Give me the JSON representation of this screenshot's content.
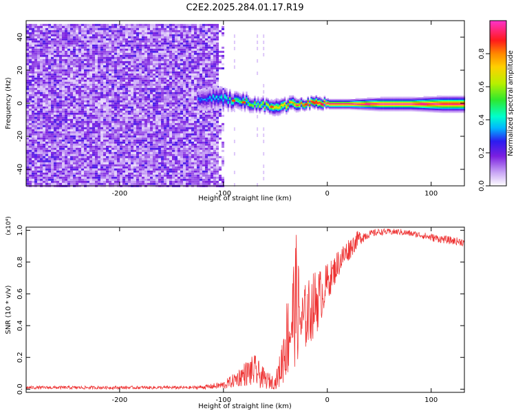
{
  "title": "C2E2.2025.284.01.17.R19",
  "chart_data": [
    {
      "type": "heatmap",
      "xlabel": "Height of straight line (km)",
      "ylabel": "Frequency (Hz)",
      "xlim": [
        -290,
        132
      ],
      "ylim": [
        -50,
        50
      ],
      "xticks": [
        -200,
        -100,
        0,
        100
      ],
      "yticks": [
        -40,
        -20,
        0,
        20,
        40
      ],
      "colorbar": {
        "label": "Normalized spectral amplitude",
        "range": [
          0,
          1
        ],
        "ticks": [
          "0.0",
          "0.2",
          "0.4",
          "0.6",
          "0.8"
        ]
      },
      "noise_region": {
        "x": [
          -290,
          -107
        ],
        "y": [
          -50,
          48
        ]
      },
      "ridge": [
        {
          "x": -125,
          "freq": 2,
          "width": 6
        },
        {
          "x": -110,
          "freq": 4,
          "width": 7
        },
        {
          "x": -100,
          "freq": 3,
          "width": 6
        },
        {
          "x": -90,
          "freq": 2,
          "width": 5
        },
        {
          "x": -80,
          "freq": 1,
          "width": 5
        },
        {
          "x": -70,
          "freq": 0,
          "width": 4
        },
        {
          "x": -60,
          "freq": -1,
          "width": 4
        },
        {
          "x": -50,
          "freq": -2,
          "width": 5
        },
        {
          "x": -40,
          "freq": -1,
          "width": 4
        },
        {
          "x": -30,
          "freq": 0,
          "width": 4
        },
        {
          "x": -20,
          "freq": 0,
          "width": 3
        },
        {
          "x": -10,
          "freq": 1,
          "width": 4
        },
        {
          "x": 0,
          "freq": 0,
          "width": 3
        },
        {
          "x": 20,
          "freq": 0,
          "width": 3
        },
        {
          "x": 50,
          "freq": 0,
          "width": 4
        },
        {
          "x": 80,
          "freq": 0,
          "width": 4
        },
        {
          "x": 110,
          "freq": 0,
          "width": 5
        },
        {
          "x": 132,
          "freq": 0,
          "width": 5
        }
      ]
    },
    {
      "type": "line",
      "xlabel": "Height of straight line (km)",
      "ylabel": "SNR (10 * v/v)",
      "multiplier": "(x10⁴)",
      "xlim": [
        -290,
        132
      ],
      "ylim": [
        -0.02,
        1.02
      ],
      "xticks": [
        -200,
        -100,
        0,
        100
      ],
      "yticks": [
        "0.0",
        "0.2",
        "0.4",
        "0.6",
        "0.8",
        "1.0"
      ],
      "color": "#ee3333",
      "envelope": {
        "x": [
          -290,
          -200,
          -130,
          -115,
          -100,
          -90,
          -80,
          -70,
          -60,
          -50,
          -45,
          -40,
          -35,
          -30,
          -25,
          -20,
          -15,
          -10,
          -5,
          0,
          5,
          10,
          20,
          30,
          40,
          50,
          60,
          70,
          80,
          90,
          100,
          110,
          120,
          132
        ],
        "low": [
          0.0,
          0.0,
          0.0,
          0.0,
          0.0,
          0.01,
          0.02,
          0.01,
          0.0,
          0.0,
          0.01,
          0.05,
          0.1,
          0.15,
          0.2,
          0.25,
          0.3,
          0.35,
          0.45,
          0.55,
          0.62,
          0.7,
          0.8,
          0.9,
          0.95,
          0.97,
          0.97,
          0.97,
          0.96,
          0.95,
          0.93,
          0.92,
          0.91,
          0.9
        ],
        "high": [
          0.02,
          0.02,
          0.02,
          0.03,
          0.05,
          0.1,
          0.17,
          0.22,
          0.12,
          0.08,
          0.25,
          0.55,
          0.7,
          0.98,
          0.62,
          0.68,
          0.72,
          0.78,
          0.75,
          0.8,
          0.82,
          0.88,
          0.95,
          1.0,
          1.0,
          1.01,
          1.01,
          1.01,
          1.0,
          0.99,
          0.98,
          0.97,
          0.96,
          0.95
        ]
      }
    }
  ]
}
